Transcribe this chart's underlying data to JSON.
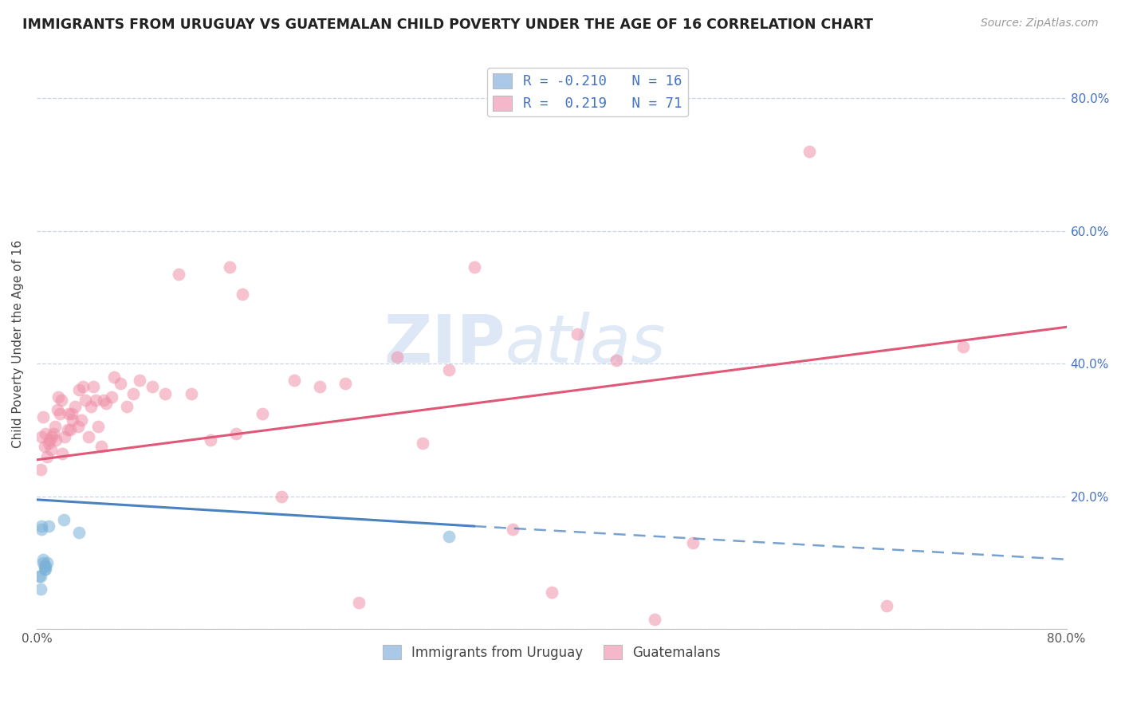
{
  "title": "IMMIGRANTS FROM URUGUAY VS GUATEMALAN CHILD POVERTY UNDER THE AGE OF 16 CORRELATION CHART",
  "source": "Source: ZipAtlas.com",
  "ylabel": "Child Poverty Under the Age of 16",
  "xlim": [
    0.0,
    0.8
  ],
  "ylim": [
    0.0,
    0.86
  ],
  "ytick_vals": [
    0.0,
    0.2,
    0.4,
    0.6,
    0.8
  ],
  "xtick_vals": [
    0.0,
    0.1,
    0.2,
    0.3,
    0.4,
    0.5,
    0.6,
    0.7,
    0.8
  ],
  "right_ytick_labels": [
    "80.0%",
    "60.0%",
    "40.0%",
    "20.0%"
  ],
  "right_ytick_vals": [
    0.8,
    0.6,
    0.4,
    0.2
  ],
  "legend_label1": "R = -0.210   N = 16",
  "legend_label2": "R =  0.219   N = 71",
  "legend_color1": "#aac8e8",
  "legend_color2": "#f5b8ca",
  "series1_color": "#7ab2d8",
  "series2_color": "#f090a8",
  "line1_color": "#4a82c0",
  "line2_color": "#e05878",
  "watermark_color": "#c8d8f0",
  "background_color": "#ffffff",
  "grid_color": "#c8d4e8",
  "series1_x": [
    0.002,
    0.003,
    0.003,
    0.004,
    0.004,
    0.005,
    0.005,
    0.006,
    0.006,
    0.007,
    0.007,
    0.008,
    0.009,
    0.021,
    0.033,
    0.32
  ],
  "series1_y": [
    0.08,
    0.08,
    0.06,
    0.15,
    0.155,
    0.1,
    0.105,
    0.09,
    0.095,
    0.09,
    0.095,
    0.1,
    0.155,
    0.165,
    0.145,
    0.14
  ],
  "series2_x": [
    0.003,
    0.004,
    0.005,
    0.006,
    0.007,
    0.008,
    0.009,
    0.01,
    0.011,
    0.012,
    0.013,
    0.014,
    0.015,
    0.016,
    0.017,
    0.018,
    0.019,
    0.02,
    0.022,
    0.024,
    0.025,
    0.026,
    0.027,
    0.028,
    0.03,
    0.032,
    0.033,
    0.035,
    0.036,
    0.038,
    0.04,
    0.042,
    0.044,
    0.046,
    0.048,
    0.05,
    0.052,
    0.054,
    0.058,
    0.06,
    0.065,
    0.07,
    0.075,
    0.08,
    0.09,
    0.1,
    0.11,
    0.12,
    0.135,
    0.15,
    0.155,
    0.16,
    0.175,
    0.19,
    0.2,
    0.22,
    0.24,
    0.25,
    0.28,
    0.3,
    0.32,
    0.34,
    0.37,
    0.4,
    0.42,
    0.45,
    0.48,
    0.51,
    0.6,
    0.66,
    0.72
  ],
  "series2_y": [
    0.24,
    0.29,
    0.32,
    0.275,
    0.295,
    0.26,
    0.28,
    0.285,
    0.27,
    0.29,
    0.295,
    0.305,
    0.285,
    0.33,
    0.35,
    0.325,
    0.345,
    0.265,
    0.29,
    0.3,
    0.325,
    0.3,
    0.325,
    0.315,
    0.335,
    0.305,
    0.36,
    0.315,
    0.365,
    0.345,
    0.29,
    0.335,
    0.365,
    0.345,
    0.305,
    0.275,
    0.345,
    0.34,
    0.35,
    0.38,
    0.37,
    0.335,
    0.355,
    0.375,
    0.365,
    0.355,
    0.535,
    0.355,
    0.285,
    0.545,
    0.295,
    0.505,
    0.325,
    0.2,
    0.375,
    0.365,
    0.37,
    0.04,
    0.41,
    0.28,
    0.39,
    0.545,
    0.15,
    0.055,
    0.445,
    0.405,
    0.015,
    0.13,
    0.72,
    0.035,
    0.425
  ],
  "line1_start_x": 0.0,
  "line1_start_y": 0.195,
  "line1_end_x": 0.34,
  "line1_end_y": 0.155,
  "line1_dash_end_x": 0.8,
  "line1_dash_end_y": 0.105,
  "line2_start_x": 0.0,
  "line2_start_y": 0.255,
  "line2_end_x": 0.8,
  "line2_end_y": 0.455
}
